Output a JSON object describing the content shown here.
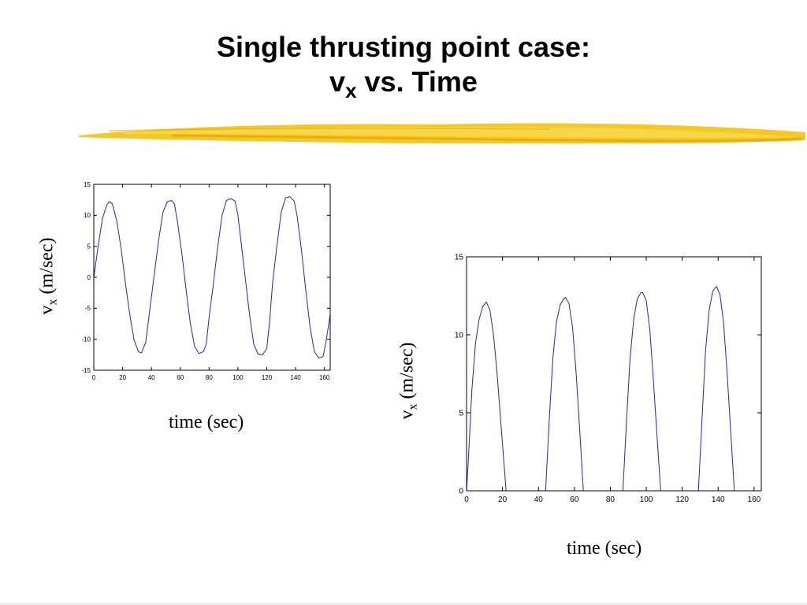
{
  "slide": {
    "title_line1": "Single thrusting point case:",
    "title_line2_var": "v",
    "title_line2_sub": "x",
    "title_line2_rest": " vs. Time"
  },
  "colors": {
    "line": "#2222cc",
    "axis": "#000000",
    "brush": "#f5c518"
  },
  "chart_data": [
    {
      "type": "line",
      "xlabel": "time (sec)",
      "ylabel_var": "v",
      "ylabel_sub": "x",
      "ylabel_unit": "(m/sec)",
      "xlim": [
        0,
        164
      ],
      "ylim": [
        -15,
        15
      ],
      "xticks": [
        0,
        20,
        40,
        60,
        80,
        100,
        120,
        140,
        160
      ],
      "yticks": [
        -15,
        -10,
        -5,
        0,
        5,
        10,
        15
      ],
      "series": [
        {
          "x": [
            0,
            3,
            6,
            9,
            11,
            13,
            16,
            19,
            22,
            25,
            28,
            31,
            33,
            36,
            39,
            42,
            45,
            48,
            51,
            54,
            56,
            58,
            61,
            64,
            67,
            70,
            73,
            76,
            78,
            80,
            83,
            86,
            89,
            92,
            95,
            98,
            100,
            102,
            105,
            108,
            111,
            114,
            117,
            120,
            122,
            124,
            127,
            130,
            133,
            136,
            139,
            141,
            144,
            147,
            150,
            153,
            156,
            159,
            161,
            164
          ],
          "y": [
            0,
            5,
            9.5,
            11.7,
            12.2,
            11.8,
            9,
            4.5,
            -1,
            -6,
            -10.2,
            -12,
            -12.2,
            -10.5,
            -5,
            0.5,
            6,
            10.5,
            12.2,
            12.4,
            11.8,
            9,
            4,
            -2,
            -7.5,
            -11.2,
            -12.3,
            -12,
            -10.8,
            -6.5,
            -1,
            5,
            10,
            12.4,
            12.7,
            12.3,
            10,
            6,
            0,
            -6,
            -10.8,
            -12.4,
            -12.5,
            -11.5,
            -7,
            -1,
            5,
            10.5,
            12.8,
            13,
            12.3,
            10,
            4.5,
            -2,
            -8,
            -12,
            -13,
            -12.8,
            -10.5,
            -6
          ]
        }
      ]
    },
    {
      "type": "line",
      "xlabel": "time (sec)",
      "ylabel_var": "v",
      "ylabel_sub": "x",
      "ylabel_unit": "(m/sec)",
      "xlim": [
        0,
        164
      ],
      "ylim": [
        0,
        15
      ],
      "xticks": [
        0,
        20,
        40,
        60,
        80,
        100,
        120,
        140,
        160
      ],
      "yticks": [
        0,
        5,
        10,
        15
      ],
      "series": [
        {
          "x": [
            0,
            1,
            3,
            5,
            7,
            9,
            11,
            13,
            15,
            17,
            19,
            21,
            22
          ],
          "y": [
            0,
            2,
            6.5,
            9.5,
            11,
            11.8,
            12.1,
            11.6,
            10,
            7.5,
            4.5,
            1.5,
            0
          ]
        },
        {
          "x": [
            44,
            46,
            48,
            50,
            52,
            54,
            55,
            57,
            59,
            61,
            63,
            65
          ],
          "y": [
            0,
            4.5,
            8.5,
            10.8,
            11.9,
            12.3,
            12.4,
            12,
            10.5,
            7.5,
            3.8,
            0
          ]
        },
        {
          "x": [
            87,
            89,
            91,
            93,
            95,
            97,
            98,
            100,
            102,
            104,
            106,
            108
          ],
          "y": [
            0,
            4.5,
            8.5,
            11,
            12.3,
            12.7,
            12.7,
            12.2,
            10.3,
            7,
            3.5,
            0
          ]
        },
        {
          "x": [
            129,
            131,
            133,
            135,
            137,
            139,
            141,
            143,
            145,
            147,
            149
          ],
          "y": [
            0,
            4.5,
            9,
            11.6,
            12.8,
            13.1,
            12.6,
            10.8,
            7.5,
            3.8,
            0
          ]
        }
      ]
    }
  ]
}
